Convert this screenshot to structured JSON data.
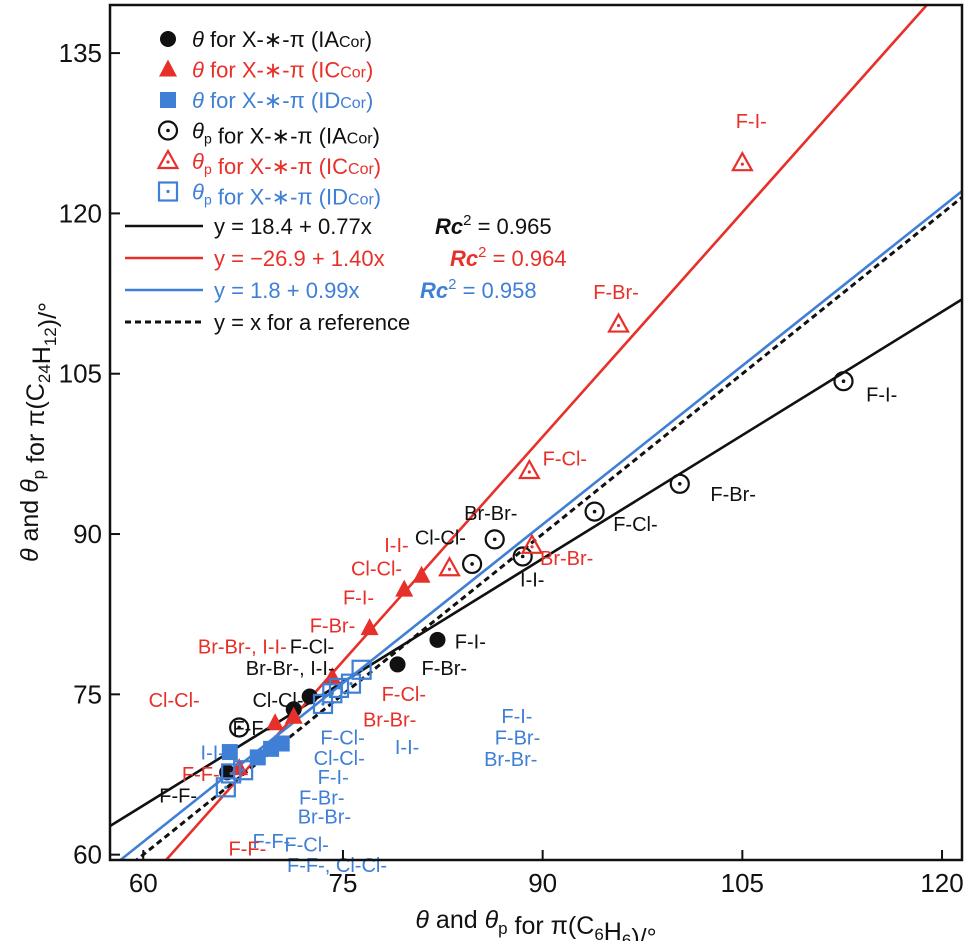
{
  "chart_data": {
    "type": "scatter",
    "xlabel": "θ and θp for π(C6H6)/°",
    "ylabel": "θ and θp for π(C24H12)/°",
    "xlim": [
      57.5,
      121.5
    ],
    "ylim": [
      59.5,
      139.5
    ],
    "x_ticks": [
      "60",
      "75",
      "90",
      "105",
      "120"
    ],
    "y_ticks": [
      "60",
      "75",
      "90",
      "105",
      "120",
      "135"
    ],
    "grid": false,
    "legend_position": "top-left",
    "colors": {
      "IA": "#111111",
      "IC": "#e8302a",
      "ID": "#3f7fd6"
    },
    "legend": [
      {
        "sym": "θ",
        "sub": "",
        "text": " for X-∗-π (IA",
        "sub2": "Cor",
        "close": ")",
        "marker": "circle-filled",
        "color": "#111111"
      },
      {
        "sym": "θ",
        "sub": "",
        "text": " for X-∗-π (IC",
        "sub2": "Cor",
        "close": ")",
        "marker": "triangle-filled",
        "color": "#e8302a"
      },
      {
        "sym": "θ",
        "sub": "",
        "text": " for X-∗-π (ID",
        "sub2": "Cor",
        "close": ")",
        "marker": "square-filled",
        "color": "#3f7fd6"
      },
      {
        "sym": "θ",
        "sub": "p",
        "text": " for X-∗-π (IA",
        "sub2": "Cor",
        "close": ")",
        "marker": "circle-open",
        "color": "#111111"
      },
      {
        "sym": "θ",
        "sub": "p",
        "text": " for X-∗-π (IC",
        "sub2": "Cor",
        "close": ")",
        "marker": "triangle-open",
        "color": "#e8302a"
      },
      {
        "sym": "θ",
        "sub": "p",
        "text": " for X-∗-π (ID",
        "sub2": "Cor",
        "close": ")",
        "marker": "square-open",
        "color": "#3f7fd6"
      }
    ],
    "fits": [
      {
        "name": "y = 18.4 + 0.77x",
        "r2": "0.965",
        "a": 18.4,
        "b": 0.77,
        "color": "#111111"
      },
      {
        "name": "y = −26.9 + 1.40x",
        "r2": "0.964",
        "a": -26.9,
        "b": 1.4,
        "color": "#e8302a"
      },
      {
        "name": "y = 1.8 + 0.99x",
        "r2": "0.958",
        "a": 1.8,
        "b": 0.99,
        "color": "#3f7fd6"
      },
      {
        "name": "y = x for a reference",
        "r2": "",
        "a": 0,
        "b": 1,
        "color": "#111111",
        "dashed": true
      }
    ],
    "r2_label": "Rc",
    "series": [
      {
        "group": "IA",
        "kind": "theta",
        "points": [
          {
            "x": 66.3,
            "y": 67.7
          },
          {
            "x": 71.3,
            "y": 73.6
          },
          {
            "x": 72.5,
            "y": 74.8
          },
          {
            "x": 79.1,
            "y": 77.8
          },
          {
            "x": 82.1,
            "y": 80.1
          }
        ]
      },
      {
        "group": "IC",
        "kind": "theta",
        "points": [
          {
            "x": 67.2,
            "y": 68.1
          },
          {
            "x": 69.9,
            "y": 72.3
          },
          {
            "x": 71.3,
            "y": 72.9
          },
          {
            "x": 74.2,
            "y": 76.6
          },
          {
            "x": 77.0,
            "y": 81.2
          },
          {
            "x": 79.6,
            "y": 84.8
          },
          {
            "x": 80.9,
            "y": 86.1
          }
        ]
      },
      {
        "group": "ID",
        "kind": "theta",
        "points": [
          {
            "x": 66.5,
            "y": 69.6
          },
          {
            "x": 68.6,
            "y": 69.1
          },
          {
            "x": 69.6,
            "y": 69.9
          },
          {
            "x": 70.4,
            "y": 70.4
          }
        ]
      },
      {
        "group": "IA",
        "kind": "thetap",
        "points": [
          {
            "x": 67.2,
            "y": 71.9
          },
          {
            "x": 84.7,
            "y": 87.2
          },
          {
            "x": 86.4,
            "y": 89.5
          },
          {
            "x": 88.5,
            "y": 87.9
          },
          {
            "x": 93.9,
            "y": 92.1
          },
          {
            "x": 100.3,
            "y": 94.7
          },
          {
            "x": 112.6,
            "y": 104.3
          }
        ]
      },
      {
        "group": "IC",
        "kind": "thetap",
        "points": [
          {
            "x": 83.0,
            "y": 86.8
          },
          {
            "x": 89.2,
            "y": 88.9
          },
          {
            "x": 89.0,
            "y": 95.9
          },
          {
            "x": 95.7,
            "y": 109.6
          },
          {
            "x": 105.0,
            "y": 124.7
          }
        ]
      },
      {
        "group": "ID",
        "kind": "thetap",
        "points": [
          {
            "x": 66.2,
            "y": 66.3
          },
          {
            "x": 66.6,
            "y": 67.6
          },
          {
            "x": 67.5,
            "y": 67.9
          },
          {
            "x": 73.5,
            "y": 74.1
          },
          {
            "x": 74.2,
            "y": 75.1
          },
          {
            "x": 74.7,
            "y": 75.6
          },
          {
            "x": 75.6,
            "y": 76.0
          },
          {
            "x": 76.4,
            "y": 77.3
          }
        ]
      }
    ],
    "annotations": [
      {
        "text": "F-I-",
        "x": 104.5,
        "y": 128.0,
        "color": "#e8302a"
      },
      {
        "text": "F-Br-",
        "x": 93.8,
        "y": 112.0,
        "color": "#e8302a"
      },
      {
        "text": "F-I-",
        "x": 114.3,
        "y": 102.4,
        "color": "#111111"
      },
      {
        "text": "F-Cl-",
        "x": 90.0,
        "y": 96.4,
        "color": "#e8302a"
      },
      {
        "text": "F-Br-",
        "x": 102.6,
        "y": 93.1,
        "color": "#111111"
      },
      {
        "text": "Br-Br-",
        "x": 84.1,
        "y": 91.3,
        "color": "#111111"
      },
      {
        "text": "F-Cl-",
        "x": 95.3,
        "y": 90.3,
        "color": "#111111"
      },
      {
        "text": "Cl-Cl-",
        "x": 80.4,
        "y": 89.0,
        "color": "#111111"
      },
      {
        "text": "I-I-",
        "x": 78.1,
        "y": 88.3,
        "color": "#e8302a"
      },
      {
        "text": "Br-Br-",
        "x": 89.8,
        "y": 87.1,
        "color": "#e8302a"
      },
      {
        "text": "Cl-Cl-",
        "x": 75.6,
        "y": 86.1,
        "color": "#e8302a"
      },
      {
        "text": "I-I-",
        "x": 88.3,
        "y": 85.1,
        "color": "#111111"
      },
      {
        "text": "F-I-",
        "x": 75.0,
        "y": 83.4,
        "color": "#e8302a"
      },
      {
        "text": "F-Br-",
        "x": 72.5,
        "y": 80.8,
        "color": "#e8302a"
      },
      {
        "text": "F-I-",
        "x": 83.4,
        "y": 79.3,
        "color": "#111111"
      },
      {
        "text": "Br-Br-, I-I-",
        "x": 64.1,
        "y": 78.8,
        "color": "#e8302a"
      },
      {
        "text": "F-Cl-",
        "x": 71.0,
        "y": 78.8,
        "color": "#111111"
      },
      {
        "text": "F-Br-",
        "x": 80.9,
        "y": 76.8,
        "color": "#111111"
      },
      {
        "text": "Br-Br-, I-I-",
        "x": 67.7,
        "y": 76.8,
        "color": "#111111"
      },
      {
        "text": "F-Cl-",
        "x": 77.9,
        "y": 74.4,
        "color": "#e8302a"
      },
      {
        "text": "Cl-Cl-",
        "x": 60.4,
        "y": 73.8,
        "color": "#e8302a"
      },
      {
        "text": "Cl-Cl-",
        "x": 68.2,
        "y": 73.8,
        "color": "#111111"
      },
      {
        "text": "F-I-",
        "x": 86.9,
        "y": 72.3,
        "color": "#3f7fd6"
      },
      {
        "text": "Br-Br-",
        "x": 76.5,
        "y": 72.0,
        "color": "#e8302a"
      },
      {
        "text": "F-Br-",
        "x": 86.4,
        "y": 70.3,
        "color": "#3f7fd6"
      },
      {
        "text": "F-F-",
        "x": 66.7,
        "y": 71.2,
        "color": "#111111"
      },
      {
        "text": "F-Cl-",
        "x": 73.3,
        "y": 70.3,
        "color": "#3f7fd6"
      },
      {
        "text": "I-I-",
        "x": 78.9,
        "y": 69.4,
        "color": "#3f7fd6"
      },
      {
        "text": "Br-Br-",
        "x": 85.6,
        "y": 68.3,
        "color": "#3f7fd6"
      },
      {
        "text": "I-I-",
        "x": 64.3,
        "y": 68.9,
        "color": "#3f7fd6"
      },
      {
        "text": "Cl-Cl-",
        "x": 72.8,
        "y": 68.4,
        "color": "#3f7fd6"
      },
      {
        "text": "F-F-",
        "x": 62.9,
        "y": 66.9,
        "color": "#e8302a"
      },
      {
        "text": "F-I-",
        "x": 73.1,
        "y": 66.6,
        "color": "#3f7fd6"
      },
      {
        "text": "F-F-",
        "x": 61.2,
        "y": 64.9,
        "color": "#111111"
      },
      {
        "text": "F-Br-",
        "x": 71.7,
        "y": 64.7,
        "color": "#3f7fd6"
      },
      {
        "text": "Br-Br-",
        "x": 71.6,
        "y": 62.9,
        "color": "#3f7fd6"
      },
      {
        "text": "F-F-",
        "x": 68.2,
        "y": 60.6,
        "color": "#3f7fd6"
      },
      {
        "text": "F-F-",
        "x": 66.4,
        "y": 59.9,
        "color": "#e8302a"
      },
      {
        "text": "F-Cl-",
        "x": 70.6,
        "y": 60.3,
        "color": "#3f7fd6"
      },
      {
        "text": "F-F-, Cl-Cl-",
        "x": 70.8,
        "y": 58.4,
        "color": "#3f7fd6"
      }
    ]
  }
}
